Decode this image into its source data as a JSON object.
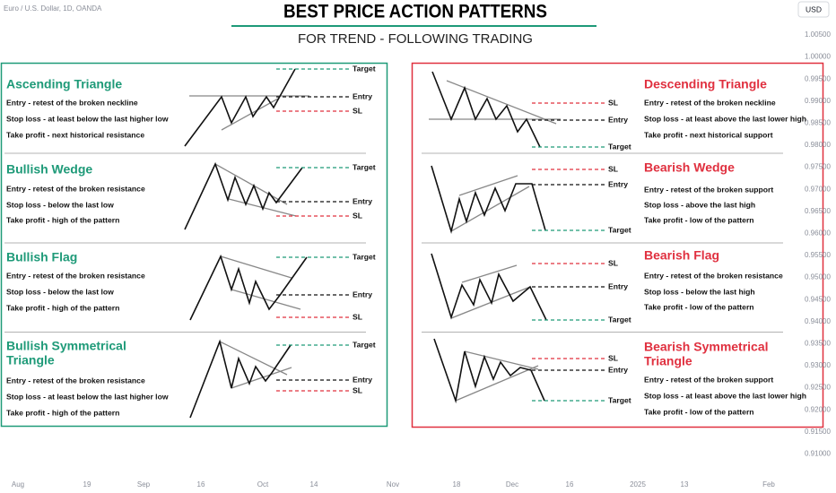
{
  "header": {
    "symbol": "Euro / U.S. Dollar, 1D, OANDA",
    "title": "BEST PRICE ACTION PATTERNS",
    "subtitle": "FOR TREND - FOLLOWING TRADING",
    "currency": "USD"
  },
  "price_axis": [
    "1.00500",
    "1.00000",
    "0.99500",
    "0.99000",
    "0.98500",
    "0.98000",
    "0.97500",
    "0.97000",
    "0.96500",
    "0.96000",
    "0.95500",
    "0.95000",
    "0.94500",
    "0.94000",
    "0.93500",
    "0.93000",
    "0.92500",
    "0.92000",
    "0.91500",
    "0.91000"
  ],
  "time_axis": [
    "Aug",
    "19",
    "Sep",
    "16",
    "Oct",
    "14",
    "Nov",
    "18",
    "Dec",
    "16",
    "2025",
    "13",
    "Feb"
  ],
  "left_panel": {
    "sections": [
      {
        "title": [
          "Ascending Triangle"
        ],
        "lines": [
          "Entry - retest of the broken neckline",
          "Stop loss - at least below the last higher low",
          "Take profit - next historical resistance"
        ],
        "levels": [
          "Target",
          "Entry",
          "SL"
        ]
      },
      {
        "title": [
          "Bullish Wedge"
        ],
        "lines": [
          "Entry - retest of the broken resistance",
          "Stop loss - below the last low",
          "Take profit - high of the pattern"
        ],
        "levels": [
          "Target",
          "Entry",
          "SL"
        ]
      },
      {
        "title": [
          "Bullish Flag"
        ],
        "lines": [
          "Entry - retest of the broken resistance",
          "Stop loss - below the last low",
          "Take profit - high of the pattern"
        ],
        "levels": [
          "Target",
          "Entry",
          "SL"
        ]
      },
      {
        "title": [
          "Bullish Symmetrical",
          "Triangle"
        ],
        "lines": [
          "Entry - retest of the broken resistance",
          "Stop loss - at least below the last higher low",
          "Take profit - high of the pattern"
        ],
        "levels": [
          "Target",
          "Entry",
          "SL"
        ]
      }
    ]
  },
  "right_panel": {
    "sections": [
      {
        "title": [
          "Descending Triangle"
        ],
        "lines": [
          "Entry - retest of the broken neckline",
          "Stop loss - at least above the last lower high",
          "Take profit - next historical support"
        ],
        "levels": [
          "SL",
          "Entry",
          "Target"
        ]
      },
      {
        "title": [
          "Bearish Wedge"
        ],
        "lines": [
          "Entry - retest of the broken support",
          "Stop loss - above the last high",
          "Take profit - low of the pattern"
        ],
        "levels": [
          "SL",
          "Entry",
          "Target"
        ]
      },
      {
        "title": [
          "Bearish Flag"
        ],
        "lines": [
          "Entry - retest of the broken resistance",
          "Stop loss - below the last high",
          "Take profit - low of the pattern"
        ],
        "levels": [
          "SL",
          "Entry",
          "Target"
        ]
      },
      {
        "title": [
          "Bearish Symmetrical",
          "Triangle"
        ],
        "lines": [
          "Entry - retest of the broken support",
          "Stop loss - at least above the last lower high",
          "Take profit - low of the pattern"
        ],
        "levels": [
          "SL",
          "Entry",
          "Target"
        ]
      }
    ]
  }
}
